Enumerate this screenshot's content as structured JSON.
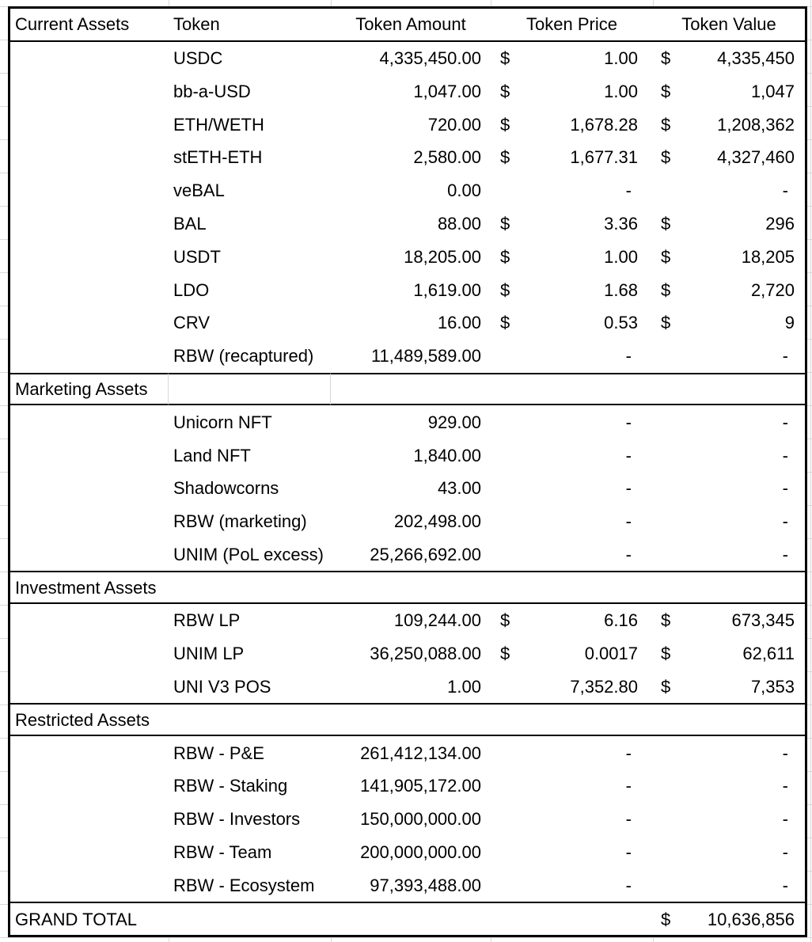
{
  "sheet": {
    "columns": [
      "Current Assets",
      "Token",
      "Token Amount",
      "Token Price",
      "Token Value"
    ],
    "sections": [
      {
        "label": "Current Assets",
        "rows": [
          {
            "token": "USDC",
            "amount": "4,335,450.00",
            "price_currency": "$",
            "price": "1.00",
            "value_currency": "$",
            "value": "4,335,450"
          },
          {
            "token": "bb-a-USD",
            "amount": "1,047.00",
            "price_currency": "$",
            "price": "1.00",
            "value_currency": "$",
            "value": "1,047"
          },
          {
            "token": "ETH/WETH",
            "amount": "720.00",
            "price_currency": "$",
            "price": "1,678.28",
            "value_currency": "$",
            "value": "1,208,362"
          },
          {
            "token": "stETH-ETH",
            "amount": "2,580.00",
            "price_currency": "$",
            "price": "1,677.31",
            "value_currency": "$",
            "value": "4,327,460"
          },
          {
            "token": "veBAL",
            "amount": "0.00",
            "price_currency": "",
            "price": "-",
            "value_currency": "",
            "value": "-"
          },
          {
            "token": "BAL",
            "amount": "88.00",
            "price_currency": "$",
            "price": "3.36",
            "value_currency": "$",
            "value": "296"
          },
          {
            "token": "USDT",
            "amount": "18,205.00",
            "price_currency": "$",
            "price": "1.00",
            "value_currency": "$",
            "value": "18,205"
          },
          {
            "token": "LDO",
            "amount": "1,619.00",
            "price_currency": "$",
            "price": "1.68",
            "value_currency": "$",
            "value": "2,720"
          },
          {
            "token": "CRV",
            "amount": "16.00",
            "price_currency": "$",
            "price": "0.53",
            "value_currency": "$",
            "value": "9"
          },
          {
            "token": "RBW (recaptured)",
            "amount": "11,489,589.00",
            "price_currency": "",
            "price": "-",
            "value_currency": "",
            "value": "-"
          }
        ]
      },
      {
        "label": "Marketing Assets",
        "rows": [
          {
            "token": "Unicorn NFT",
            "amount": "929.00",
            "price_currency": "",
            "price": "-",
            "value_currency": "",
            "value": "-"
          },
          {
            "token": "Land NFT",
            "amount": "1,840.00",
            "price_currency": "",
            "price": "-",
            "value_currency": "",
            "value": "-"
          },
          {
            "token": "Shadowcorns",
            "amount": "43.00",
            "price_currency": "",
            "price": "-",
            "value_currency": "",
            "value": "-"
          },
          {
            "token": "RBW (marketing)",
            "amount": "202,498.00",
            "price_currency": "",
            "price": "-",
            "value_currency": "",
            "value": "-"
          },
          {
            "token": "UNIM (PoL excess)",
            "amount": "25,266,692.00",
            "price_currency": "",
            "price": "-",
            "value_currency": "",
            "value": "-"
          }
        ]
      },
      {
        "label": "Investment Assets",
        "rows": [
          {
            "token": "RBW LP",
            "amount": "109,244.00",
            "price_currency": "$",
            "price": "6.16",
            "value_currency": "$",
            "value": "673,345"
          },
          {
            "token": "UNIM LP",
            "amount": "36,250,088.00",
            "price_currency": "$",
            "price": "0.0017",
            "value_currency": "$",
            "value": "62,611"
          },
          {
            "token": "UNI V3 POS",
            "amount": "1.00",
            "price_currency": "",
            "price": "7,352.80",
            "value_currency": "$",
            "value": "7,353"
          }
        ]
      },
      {
        "label": "Restricted Assets",
        "rows": [
          {
            "token": "RBW - P&E",
            "amount": "261,412,134.00",
            "price_currency": "",
            "price": "-",
            "value_currency": "",
            "value": "-"
          },
          {
            "token": "RBW - Staking",
            "amount": "141,905,172.00",
            "price_currency": "",
            "price": "-",
            "value_currency": "",
            "value": "-"
          },
          {
            "token": "RBW - Investors",
            "amount": "150,000,000.00",
            "price_currency": "",
            "price": "-",
            "value_currency": "",
            "value": "-"
          },
          {
            "token": "RBW - Team",
            "amount": "200,000,000.00",
            "price_currency": "",
            "price": "-",
            "value_currency": "",
            "value": "-"
          },
          {
            "token": "RBW - Ecosystem",
            "amount": "97,393,488.00",
            "price_currency": "",
            "price": "-",
            "value_currency": "",
            "value": "-"
          }
        ]
      }
    ],
    "grand_total": {
      "label": "GRAND TOTAL",
      "currency": "$",
      "value": "10,636,856"
    },
    "colors": {
      "border": "#000000",
      "gridline": "#d9d9d9",
      "text": "#000000",
      "background": "#ffffff"
    }
  }
}
